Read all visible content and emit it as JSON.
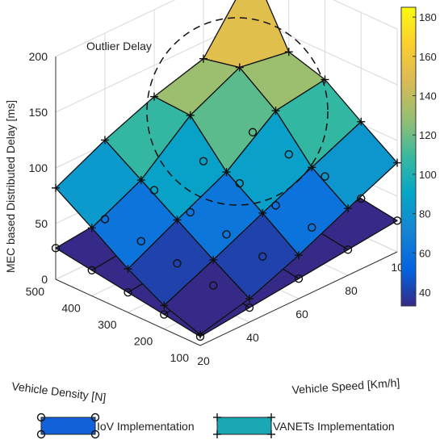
{
  "chart_data": {
    "type": "surface3d",
    "annotation": "Outlier Delay",
    "zlabel": "MEC based Distributed Delay [ms]",
    "xlabel": "Vehicle Speed [Km/h]",
    "ylabel": "Vehicle Density [N]",
    "x_ticks": [
      "20",
      "40",
      "60",
      "80",
      "100"
    ],
    "y_ticks": [
      "100",
      "200",
      "300",
      "400",
      "500"
    ],
    "z_ticks": [
      "0",
      "50",
      "100",
      "150",
      "200"
    ],
    "colorbar_ticks": [
      "40",
      "60",
      "80",
      "100",
      "120",
      "140",
      "160",
      "180"
    ],
    "colorbar_range": [
      33,
      185
    ],
    "zlim": [
      0,
      200
    ],
    "x": [
      20,
      40,
      60,
      80,
      100
    ],
    "y": [
      100,
      200,
      300,
      400,
      500
    ],
    "legend": [
      "IoV Implementation",
      "VANETs Implementation"
    ],
    "series": [
      {
        "name": "IoV Implementation",
        "marker": "circle",
        "z": [
          [
            8,
            13,
            18,
            23,
            28
          ],
          [
            13,
            18,
            23,
            28,
            33
          ],
          [
            18,
            23,
            28,
            33,
            38
          ],
          [
            23,
            28,
            33,
            38,
            43
          ],
          [
            28,
            33,
            38,
            43,
            48
          ]
        ]
      },
      {
        "name": "VANETs Implementation",
        "marker": "plus",
        "z": [
          [
            10,
            21,
            39,
            60,
            80
          ],
          [
            21,
            41,
            62,
            82,
            102
          ],
          [
            39,
            62,
            84,
            118,
            125
          ],
          [
            61,
            83,
            120,
            142,
            135
          ],
          [
            82,
            104,
            122,
            135,
            195
          ]
        ]
      }
    ]
  }
}
